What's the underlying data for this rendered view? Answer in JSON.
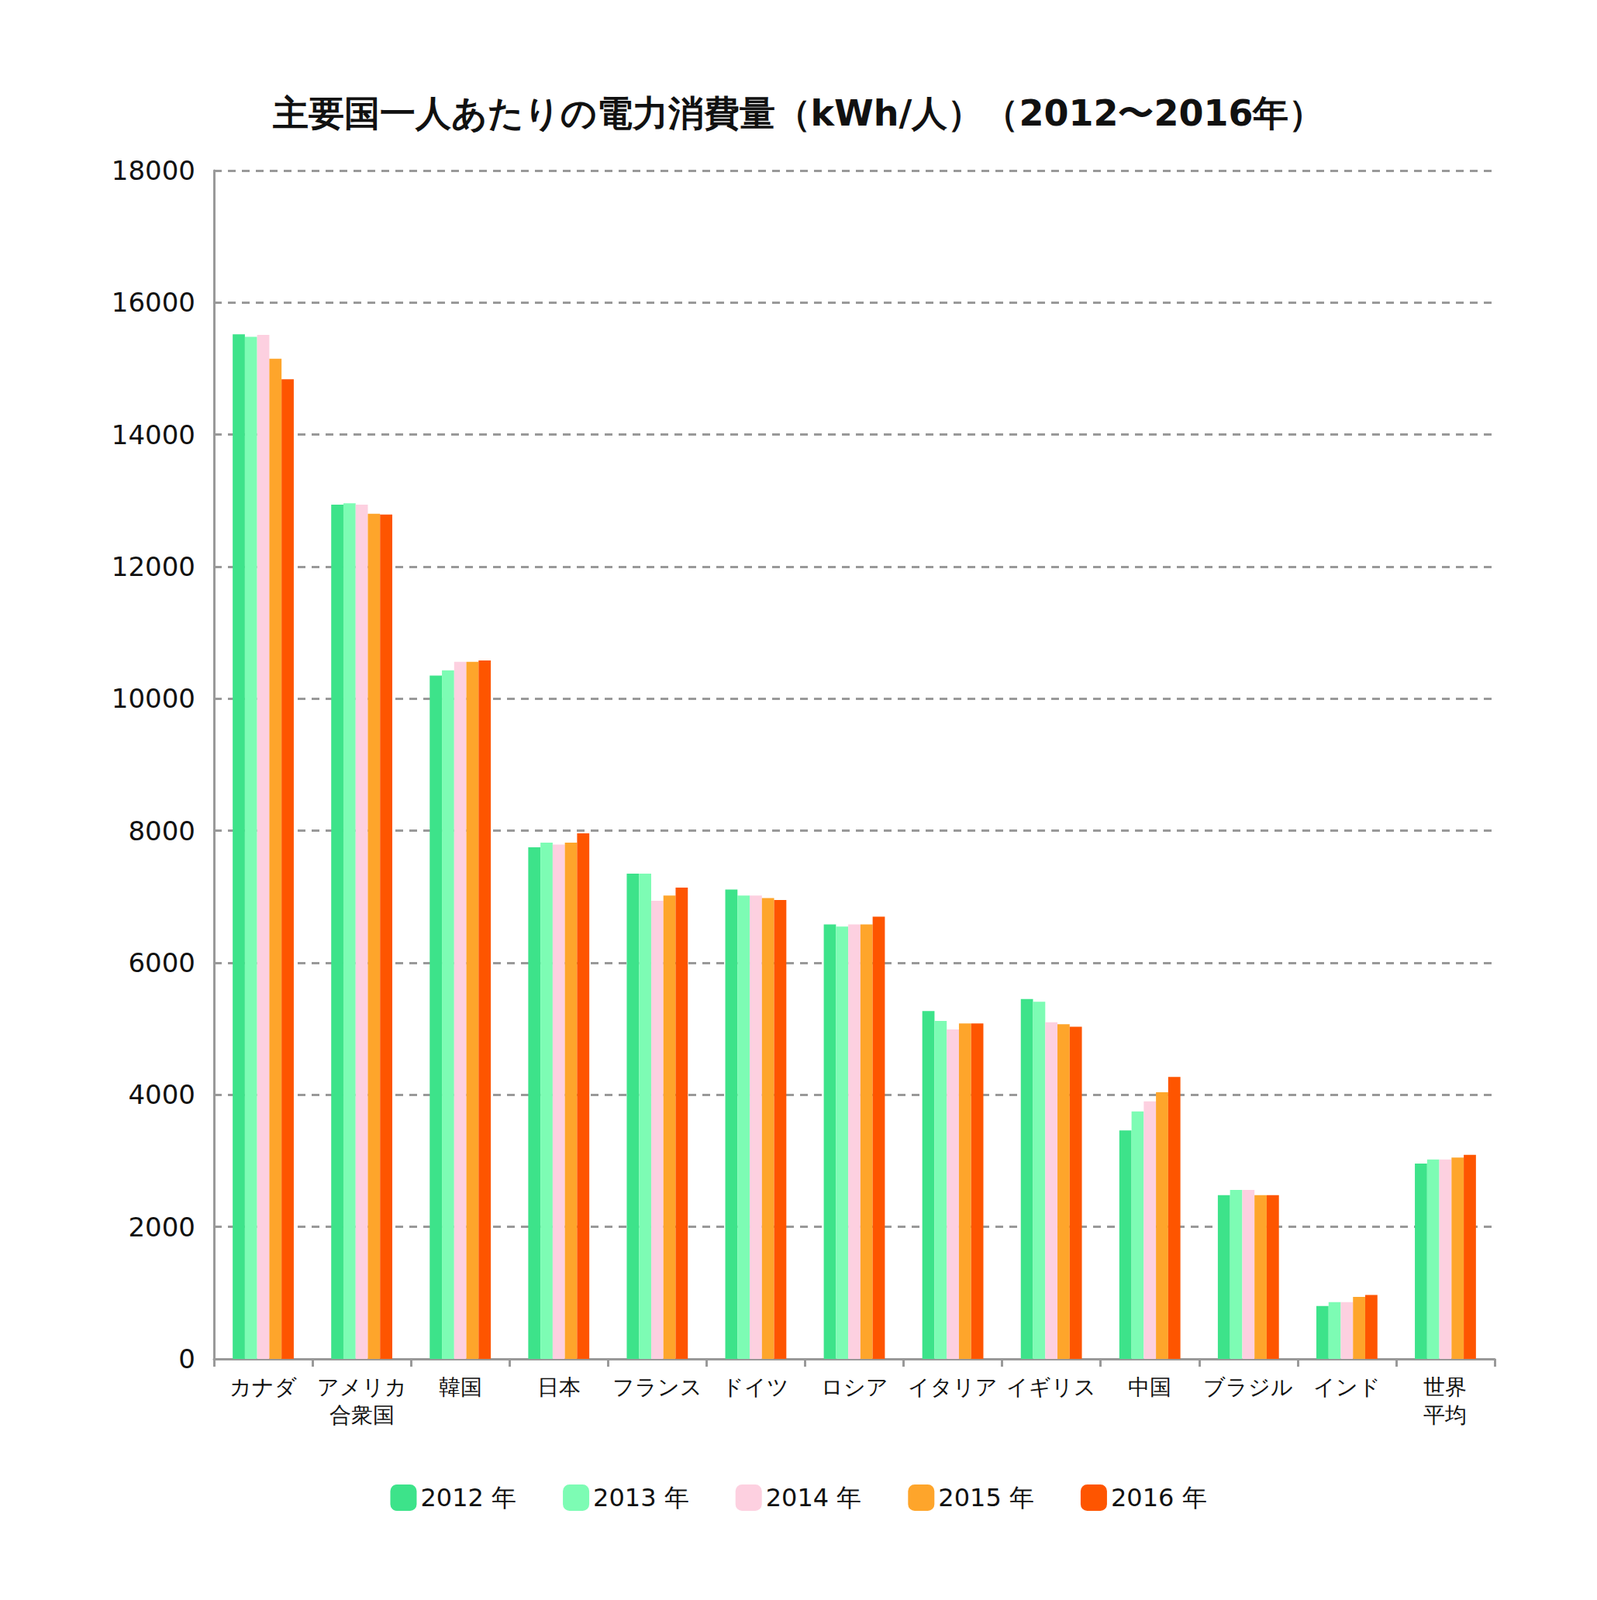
{
  "chart_data": {
    "type": "bar",
    "title": "主要国一人あたりの電力消費量（kWh/人）（2012〜2016年）",
    "categories": [
      "カナダ",
      "アメリカ\n合衆国",
      "韓国",
      "日本",
      "フランス",
      "ドイツ",
      "ロシア",
      "イタリア",
      "イギリス",
      "中国",
      "ブラジル",
      "インド",
      "世界\n平均"
    ],
    "series": [
      {
        "name": "2012 年",
        "color": "#3de38a",
        "values": [
          15520,
          12940,
          10350,
          7750,
          7350,
          7110,
          6580,
          5270,
          5450,
          3460,
          2480,
          800,
          2960
        ]
      },
      {
        "name": "2013 年",
        "color": "#7dfcb4",
        "values": [
          15480,
          12960,
          10430,
          7820,
          7350,
          7020,
          6550,
          5120,
          5410,
          3750,
          2560,
          860,
          3020
        ]
      },
      {
        "name": "2014 年",
        "color": "#fdd0e0",
        "values": [
          15510,
          12940,
          10560,
          7790,
          6940,
          7020,
          6580,
          4990,
          5100,
          3900,
          2560,
          860,
          3020
        ]
      },
      {
        "name": "2015 年",
        "color": "#fea52b",
        "values": [
          15150,
          12800,
          10560,
          7820,
          7020,
          6980,
          6580,
          5080,
          5070,
          4040,
          2480,
          940,
          3050
        ]
      },
      {
        "name": "2016 年",
        "color": "#fe5500",
        "values": [
          14840,
          12790,
          10580,
          7960,
          7140,
          6950,
          6700,
          5080,
          5030,
          4270,
          2480,
          970,
          3090
        ]
      }
    ],
    "ylim": [
      0,
      18000
    ],
    "yticks": [
      0,
      2000,
      4000,
      6000,
      8000,
      10000,
      12000,
      14000,
      16000,
      18000
    ],
    "grid": true,
    "legend": "bottom"
  }
}
